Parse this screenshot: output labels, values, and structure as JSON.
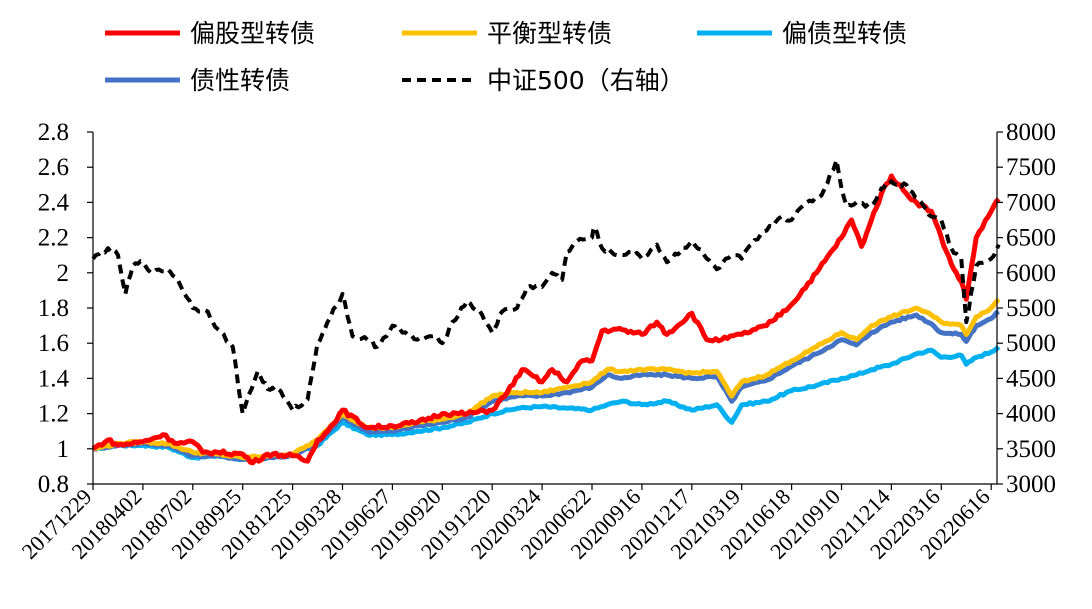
{
  "chart_data": {
    "type": "line",
    "title": "",
    "xlabel": "",
    "ylabel": "",
    "y2label": "",
    "grid": false,
    "legend_position": "top",
    "colors": {
      "equity_cb": "#ff0000",
      "balanced_cb": "#ffc000",
      "debt_cb": "#00b0f0",
      "bond_like_cb": "#4472c4",
      "csi500": "#000000",
      "axis": "#000000"
    },
    "left_axis": {
      "ylim": [
        0.8,
        2.8
      ],
      "ticks": [
        "0.8",
        "1",
        "1.2",
        "1.4",
        "1.6",
        "1.8",
        "2",
        "2.2",
        "2.4",
        "2.6",
        "2.8"
      ]
    },
    "right_axis": {
      "ylim": [
        3000,
        8000
      ],
      "ticks": [
        "3000",
        "3500",
        "4000",
        "4500",
        "5000",
        "5500",
        "6000",
        "6500",
        "7000",
        "7500",
        "8000"
      ]
    },
    "categories": [
      "20171229",
      "20180402",
      "20180702",
      "20180925",
      "20181225",
      "20190328",
      "20190627",
      "20190920",
      "20191220",
      "20200324",
      "20200622",
      "20200916",
      "20201217",
      "20210319",
      "20210618",
      "20210910",
      "20211214",
      "20220316",
      "20220616"
    ],
    "legend": [
      {
        "key": "equity_cb",
        "label": "偏股型转债"
      },
      {
        "key": "balanced_cb",
        "label": "平衡型转债"
      },
      {
        "key": "debt_cb",
        "label": "偏债型转债"
      },
      {
        "key": "bond_like_cb",
        "label": "债性转债"
      },
      {
        "key": "csi500",
        "label": "中证500（右轴）"
      }
    ],
    "series": [
      {
        "key": "csi500",
        "name": "中证500（右轴）",
        "axis": "right",
        "style": "dashed",
        "x": [
          0,
          0.3,
          0.5,
          0.65,
          0.8,
          1,
          1.2,
          1.5,
          1.7,
          2,
          2.3,
          2.5,
          2.8,
          3,
          3.3,
          3.5,
          3.7,
          4,
          4.3,
          4.5,
          4.7,
          5,
          5.2,
          5.5,
          5.7,
          6,
          6.2,
          6.5,
          6.8,
          7,
          7.2,
          7.5,
          7.8,
          8,
          8.2,
          8.5,
          8.7,
          9,
          9.2,
          9.4,
          9.5,
          9.7,
          10,
          10.05,
          10.2,
          10.5,
          10.8,
          11,
          11.3,
          11.5,
          12,
          12.3,
          12.5,
          12.8,
          13,
          13.2,
          13.5,
          13.8,
          14,
          14.3,
          14.6,
          14.9,
          15,
          15.1,
          15.3,
          15.6,
          15.8,
          16,
          16.1,
          16.3,
          16.6,
          16.8,
          17,
          17.2,
          17.4,
          17.5,
          17.7,
          18,
          18.15
        ],
        "values": [
          6200,
          6350,
          6250,
          5700,
          6100,
          6150,
          6000,
          6050,
          5900,
          5500,
          5450,
          5200,
          4950,
          4000,
          4600,
          4350,
          4350,
          4050,
          4200,
          5000,
          5300,
          5700,
          5100,
          5050,
          4950,
          5250,
          5150,
          5050,
          5100,
          5000,
          5300,
          5600,
          5400,
          5150,
          5450,
          5500,
          5800,
          5800,
          6000,
          5900,
          6300,
          6450,
          6500,
          6650,
          6350,
          6250,
          6300,
          6200,
          6400,
          6150,
          6450,
          6200,
          6050,
          6250,
          6200,
          6400,
          6600,
          6800,
          6750,
          7000,
          7100,
          7600,
          7200,
          6950,
          7000,
          6950,
          7200,
          7300,
          7250,
          7250,
          7000,
          6800,
          6750,
          6350,
          6200,
          5300,
          6100,
          6200,
          6400
        ]
      },
      {
        "key": "equity_cb",
        "name": "偏股型转债",
        "axis": "left",
        "style": "solid",
        "x": [
          0,
          0.3,
          0.5,
          1,
          1.4,
          1.7,
          2,
          2.2,
          2.5,
          3,
          3.2,
          3.5,
          4,
          4.3,
          4.5,
          4.7,
          5,
          5.5,
          6,
          6.5,
          7,
          7.5,
          8,
          8.3,
          8.6,
          9,
          9.2,
          9.5,
          9.8,
          10,
          10.2,
          10.5,
          11,
          11.3,
          11.5,
          12,
          12.3,
          12.6,
          13,
          13.5,
          14,
          14.5,
          15,
          15.2,
          15.4,
          15.6,
          15.8,
          16,
          16.3,
          16.5,
          16.8,
          17,
          17.2,
          17.4,
          17.5,
          17.7,
          18,
          18.15
        ],
        "values": [
          1.0,
          1.05,
          1.02,
          1.04,
          1.08,
          1.03,
          1.04,
          0.98,
          0.98,
          0.97,
          0.92,
          0.97,
          0.96,
          0.93,
          1.05,
          1.1,
          1.22,
          1.12,
          1.13,
          1.15,
          1.2,
          1.2,
          1.22,
          1.32,
          1.45,
          1.38,
          1.45,
          1.38,
          1.5,
          1.5,
          1.67,
          1.68,
          1.65,
          1.72,
          1.65,
          1.77,
          1.62,
          1.62,
          1.65,
          1.7,
          1.82,
          2.0,
          2.2,
          2.3,
          2.15,
          2.3,
          2.45,
          2.55,
          2.45,
          2.4,
          2.35,
          2.2,
          2.05,
          1.95,
          1.85,
          2.2,
          2.35,
          2.42
        ]
      },
      {
        "key": "balanced_cb",
        "name": "平衡型转债",
        "axis": "left",
        "style": "solid",
        "x": [
          0,
          0.5,
          1,
          1.5,
          2,
          2.5,
          3,
          3.5,
          4,
          4.5,
          5,
          5.5,
          6,
          6.5,
          7,
          7.5,
          8,
          8.5,
          9,
          9.5,
          10,
          10.3,
          10.6,
          11,
          11.5,
          12,
          12.5,
          12.8,
          13,
          13.5,
          14,
          14.5,
          15,
          15.3,
          15.6,
          16,
          16.5,
          16.8,
          17,
          17.4,
          17.5,
          17.7,
          18,
          18.15
        ],
        "values": [
          1.0,
          1.03,
          1.04,
          1.03,
          0.98,
          0.97,
          0.95,
          0.96,
          0.97,
          1.05,
          1.2,
          1.12,
          1.12,
          1.15,
          1.17,
          1.2,
          1.3,
          1.32,
          1.32,
          1.35,
          1.38,
          1.45,
          1.44,
          1.45,
          1.45,
          1.43,
          1.44,
          1.3,
          1.38,
          1.42,
          1.5,
          1.58,
          1.66,
          1.62,
          1.7,
          1.75,
          1.8,
          1.76,
          1.72,
          1.7,
          1.65,
          1.75,
          1.8,
          1.85
        ]
      },
      {
        "key": "bond_like_cb",
        "name": "债性转债",
        "axis": "left",
        "style": "solid",
        "x": [
          0,
          0.5,
          1,
          1.5,
          2,
          2.5,
          3,
          3.5,
          4,
          4.5,
          5,
          5.5,
          6,
          6.5,
          7,
          7.5,
          8,
          8.5,
          9,
          9.5,
          10,
          10.3,
          10.6,
          11,
          11.5,
          12,
          12.5,
          12.8,
          13,
          13.5,
          14,
          14.5,
          15,
          15.3,
          15.6,
          16,
          16.5,
          16.8,
          17,
          17.4,
          17.5,
          17.7,
          18,
          18.15
        ],
        "values": [
          1.0,
          1.02,
          1.03,
          1.02,
          0.96,
          0.96,
          0.94,
          0.95,
          0.96,
          1.03,
          1.18,
          1.1,
          1.1,
          1.13,
          1.15,
          1.18,
          1.27,
          1.3,
          1.3,
          1.32,
          1.35,
          1.42,
          1.4,
          1.42,
          1.42,
          1.4,
          1.41,
          1.27,
          1.35,
          1.39,
          1.47,
          1.54,
          1.62,
          1.59,
          1.66,
          1.72,
          1.76,
          1.71,
          1.66,
          1.65,
          1.61,
          1.7,
          1.74,
          1.78
        ]
      },
      {
        "key": "debt_cb",
        "name": "偏债型转债",
        "axis": "left",
        "style": "solid",
        "x": [
          0,
          0.5,
          1,
          1.5,
          2,
          2.5,
          3,
          3.5,
          4,
          4.5,
          5,
          5.5,
          6,
          6.5,
          7,
          7.5,
          8,
          8.5,
          9,
          9.5,
          10,
          10.3,
          10.6,
          11,
          11.5,
          12,
          12.5,
          12.8,
          13,
          13.5,
          14,
          14.5,
          15,
          15.3,
          15.6,
          16,
          16.5,
          16.8,
          17,
          17.4,
          17.5,
          17.7,
          18,
          18.15
        ],
        "values": [
          1.0,
          1.02,
          1.02,
          1.01,
          0.95,
          0.96,
          0.94,
          0.95,
          0.97,
          1.02,
          1.15,
          1.08,
          1.08,
          1.1,
          1.12,
          1.15,
          1.2,
          1.23,
          1.24,
          1.23,
          1.22,
          1.25,
          1.27,
          1.25,
          1.27,
          1.22,
          1.25,
          1.15,
          1.25,
          1.27,
          1.33,
          1.36,
          1.4,
          1.42,
          1.45,
          1.48,
          1.54,
          1.56,
          1.52,
          1.53,
          1.48,
          1.52,
          1.55,
          1.58
        ]
      }
    ]
  }
}
